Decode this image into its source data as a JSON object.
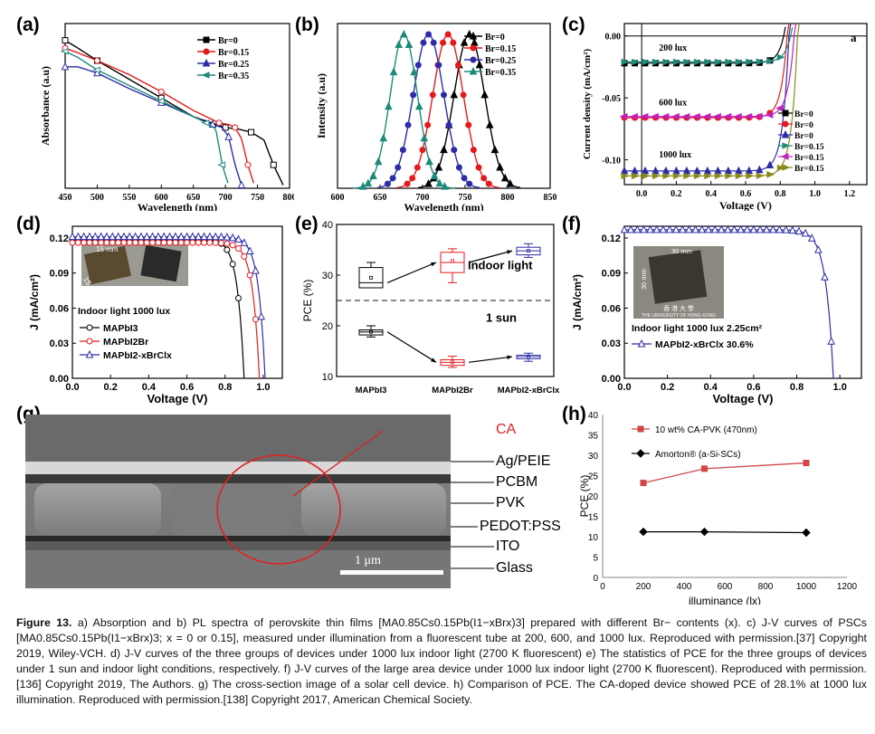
{
  "panel_labels": {
    "a": "(a)",
    "b": "(b)",
    "c": "(c)",
    "d": "(d)",
    "e": "(e)",
    "f": "(f)",
    "g": "(g)",
    "h": "(h)"
  },
  "legend_br": [
    "Br=0",
    "Br=0.15",
    "Br=0.25",
    "Br=0.35"
  ],
  "c_legend": [
    "Br=0",
    "Br=0",
    "Br=0",
    "Br=0.15",
    "Br=0.15",
    "Br=0.15"
  ],
  "d_legend": [
    "MAPbI3",
    "MAPbI2Br",
    "MAPbI2-xBrClx"
  ],
  "colors": {
    "black": "#000000",
    "red": "#e41a1c",
    "blue": "#2c2ca8",
    "teal": "#1f8a7a",
    "magenta": "#c020c0",
    "olive": "#8a8a1a",
    "h_red": "#d04545"
  },
  "chart_data": [
    {
      "id": "a",
      "type": "line",
      "xlabel": "Wavelength (nm)",
      "ylabel": "Absorbance (a.u)",
      "xlim": [
        450,
        800
      ],
      "xticks": [
        "450",
        "500",
        "550",
        "600",
        "650",
        "700",
        "750",
        "800"
      ],
      "series": [
        {
          "name": "Br=0",
          "x": [
            450,
            470,
            500,
            550,
            600,
            650,
            700,
            720,
            740,
            760,
            775,
            790
          ],
          "y": [
            0.95,
            0.9,
            0.82,
            0.7,
            0.58,
            0.46,
            0.39,
            0.38,
            0.36,
            0.31,
            0.15,
            0.02
          ]
        },
        {
          "name": "Br=0.15",
          "x": [
            450,
            470,
            500,
            550,
            600,
            650,
            690,
            705,
            715,
            725,
            735,
            745
          ],
          "y": [
            0.9,
            0.87,
            0.82,
            0.73,
            0.62,
            0.5,
            0.42,
            0.41,
            0.39,
            0.32,
            0.15,
            0.02
          ]
        },
        {
          "name": "Br=0.25",
          "x": [
            450,
            470,
            500,
            550,
            600,
            650,
            680,
            695,
            705,
            715,
            725
          ],
          "y": [
            0.78,
            0.78,
            0.74,
            0.64,
            0.55,
            0.46,
            0.41,
            0.39,
            0.33,
            0.15,
            0.02
          ]
        },
        {
          "name": "Br=0.35",
          "x": [
            450,
            470,
            500,
            550,
            600,
            650,
            670,
            685,
            695,
            705
          ],
          "y": [
            0.88,
            0.84,
            0.76,
            0.66,
            0.56,
            0.46,
            0.42,
            0.38,
            0.15,
            0.02
          ]
        }
      ]
    },
    {
      "id": "b",
      "type": "line",
      "xlabel": "Wavelength (nm)",
      "ylabel": "Intensity (a.u)",
      "xlim": [
        600,
        850
      ],
      "xticks": [
        "600",
        "650",
        "700",
        "750",
        "800",
        "850"
      ],
      "series": [
        {
          "name": "Br=0",
          "peak": 755,
          "width": 18
        },
        {
          "name": "Br=0.15",
          "peak": 730,
          "width": 18
        },
        {
          "name": "Br=0.25",
          "peak": 707,
          "width": 18
        },
        {
          "name": "Br=0.35",
          "peak": 678,
          "width": 16
        }
      ]
    },
    {
      "id": "c",
      "type": "line",
      "xlabel": "Voltage (V)",
      "ylabel": "Current density (mA/cm²)",
      "xlim": [
        -0.1,
        1.3
      ],
      "ylim": [
        -0.12,
        0.01
      ],
      "xticks": [
        "0.0",
        "0.2",
        "0.4",
        "0.6",
        "0.8",
        "1.0",
        "1.2"
      ],
      "yticks": [
        "0.00",
        "-0.05",
        "-0.10"
      ],
      "corner_label": "a",
      "annotations": [
        "200 lux",
        "600 lux",
        "1000 lux"
      ],
      "series": [
        {
          "name": "Br=0",
          "jsc": -0.022,
          "voc": 0.82
        },
        {
          "name": "Br=0",
          "jsc": -0.066,
          "voc": 0.84
        },
        {
          "name": "Br=0",
          "jsc": -0.109,
          "voc": 0.85
        },
        {
          "name": "Br=0.15",
          "jsc": -0.021,
          "voc": 0.86
        },
        {
          "name": "Br=0.15",
          "jsc": -0.065,
          "voc": 0.88
        },
        {
          "name": "Br=0.15",
          "jsc": -0.113,
          "voc": 0.9
        }
      ]
    },
    {
      "id": "d",
      "type": "line",
      "xlabel": "Voltage (V)",
      "ylabel": "J (mA/cm²)",
      "xlim": [
        0,
        1.1
      ],
      "ylim": [
        0,
        0.13
      ],
      "xticks": [
        "0.0",
        "0.2",
        "0.4",
        "0.6",
        "0.8",
        "1.0"
      ],
      "yticks": [
        "0.00",
        "0.03",
        "0.06",
        "0.09",
        "0.12"
      ],
      "annotation": "Indoor light 1000 lux",
      "photo_labels": [
        "15 mm",
        "15 mm"
      ],
      "series": [
        {
          "name": "MAPbI3",
          "jsc": 0.119,
          "voc": 0.9
        },
        {
          "name": "MAPbI2Br",
          "jsc": 0.116,
          "voc": 0.98
        },
        {
          "name": "MAPbI2-xBrClx",
          "jsc": 0.121,
          "voc": 1.01
        }
      ]
    },
    {
      "id": "e",
      "type": "box",
      "ylabel": "PCE (%)",
      "ylim": [
        10,
        40
      ],
      "yticks": [
        "10",
        "20",
        "30",
        "40"
      ],
      "categories": [
        "MAPbI3",
        "MAPbI2Br",
        "MAPbI2-xBrClx"
      ],
      "labels": [
        "Indoor light",
        "1 sun"
      ],
      "indoor": [
        {
          "min": 27.5,
          "q1": 27.5,
          "median": 28.5,
          "q3": 31.5,
          "max": 32.5,
          "mean": 29.5
        },
        {
          "min": 28.5,
          "q1": 30.5,
          "median": 32.5,
          "q3": 34.5,
          "max": 35.2,
          "mean": 32.8
        },
        {
          "min": 33.5,
          "q1": 34.0,
          "median": 34.8,
          "q3": 35.5,
          "max": 36.2,
          "mean": 34.8
        }
      ],
      "one_sun": [
        {
          "min": 17.8,
          "q1": 18.2,
          "median": 18.8,
          "q3": 19.2,
          "max": 20.0,
          "mean": 18.8
        },
        {
          "min": 11.8,
          "q1": 12.2,
          "median": 12.8,
          "q3": 13.3,
          "max": 14.0,
          "mean": 12.8
        },
        {
          "min": 13.0,
          "q1": 13.5,
          "median": 13.9,
          "q3": 14.2,
          "max": 14.6,
          "mean": 13.8
        }
      ]
    },
    {
      "id": "f",
      "type": "line",
      "xlabel": "Voltage (V)",
      "ylabel": "J (mA/cm²)",
      "xlim": [
        0,
        1.1
      ],
      "ylim": [
        0,
        0.13
      ],
      "xticks": [
        "0.0",
        "0.2",
        "0.4",
        "0.6",
        "0.8",
        "1.0"
      ],
      "yticks": [
        "0.00",
        "0.03",
        "0.06",
        "0.09",
        "0.12"
      ],
      "annotation": "Indoor light 1000 lux 2.25cm²",
      "photo_labels": [
        "30 mm",
        "30 mm",
        "香 港 大 學",
        "THE UNIVERSITY OF HONG KONG"
      ],
      "series": [
        {
          "name": "MAPbI2-xBrClx 30.6%",
          "jsc": 0.127,
          "voc": 0.97
        }
      ]
    },
    {
      "id": "h",
      "type": "line",
      "xlabel": "illuminance (lx)",
      "ylabel": "PCE (%)",
      "xlim": [
        0,
        1200
      ],
      "ylim": [
        0,
        40
      ],
      "xticks": [
        "0",
        "200",
        "400",
        "600",
        "800",
        "1000",
        "1200"
      ],
      "yticks": [
        "0",
        "5",
        "10",
        "15",
        "20",
        "25",
        "30",
        "35",
        "40"
      ],
      "series": [
        {
          "name": "10 wt% CA-PVK (470nm)",
          "x": [
            200,
            500,
            1000
          ],
          "y": [
            23.2,
            26.7,
            28.1
          ]
        },
        {
          "name": "Amorton® (a-Si-SCs)",
          "x": [
            200,
            500,
            1000
          ],
          "y": [
            11.2,
            11.2,
            11.0
          ]
        }
      ]
    }
  ],
  "sem": {
    "labels": [
      "CA",
      "Ag/PEIE",
      "PCBM",
      "PVK",
      "PEDOT:PSS",
      "ITO",
      "Glass"
    ],
    "scale_bar": "1 μm"
  },
  "caption": {
    "figure_label": "Figure 13.",
    "text": "a) Absorption and b) PL spectra of perovskite thin films [MA0.85Cs0.15Pb(I1−xBrx)3] prepared with different Br− contents (x). c) J-V curves of PSCs [MA0.85Cs0.15Pb(I1−xBrx)3; x = 0 or 0.15], measured under illumination from a fluorescent tube at 200, 600, and 1000 lux. Reproduced with permission.[37] Copyright 2019, Wiley-VCH. d) J-V curves of the three groups of devices under 1000 lux indoor light (2700 K fluorescent) e) The statistics of PCE for the three groups of devices under 1 sun and indoor light conditions, respectively. f) J-V curves of the large area device under 1000 lux indoor light (2700 K fluorescent). Reproduced with permission.[136] Copyright 2019, The Authors. g) The cross-section image of a solar cell device. h) Comparison of PCE. The CA-doped device showed PCE of 28.1% at 1000 lux illumination. Reproduced with permission.[138] Copyright 2017, American Chemical Society."
  }
}
